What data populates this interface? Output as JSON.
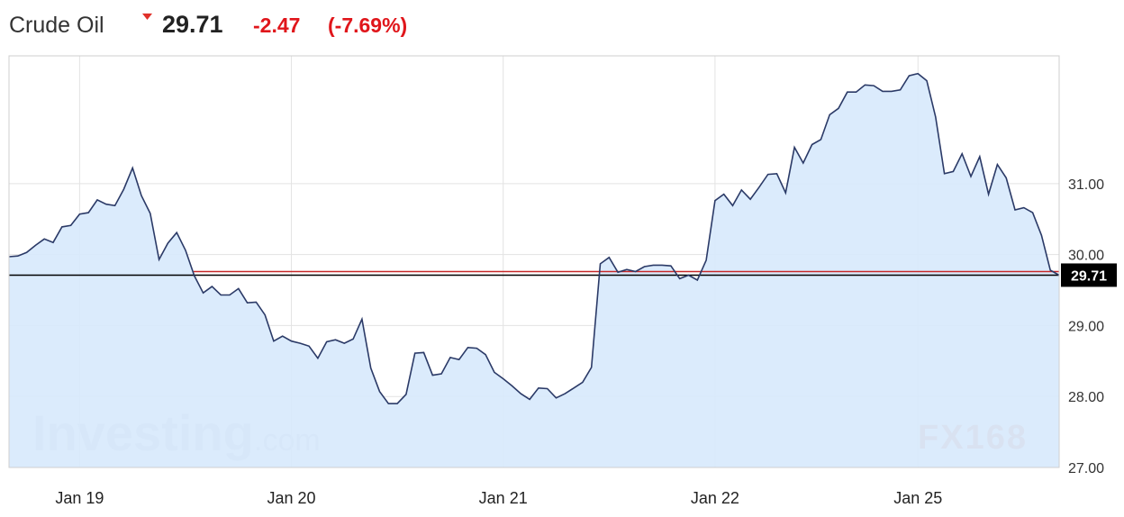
{
  "chart_data": {
    "type": "line",
    "title": "Crude Oil",
    "price": 29.71,
    "change": -2.47,
    "change_pct": {
      "value": -7.69,
      "label": "(-7.69%)"
    },
    "watermarks": [
      "Investing",
      ".com",
      "FX168"
    ],
    "categories": [
      null,
      null,
      null,
      null,
      null,
      null,
      null,
      null,
      "Jan 19",
      null,
      null,
      null,
      null,
      null,
      null,
      null,
      null,
      null,
      null,
      null,
      null,
      null,
      null,
      null,
      null,
      null,
      null,
      null,
      null,
      null,
      null,
      null,
      "Jan 20",
      null,
      null,
      null,
      null,
      null,
      null,
      null,
      null,
      null,
      null,
      null,
      null,
      null,
      null,
      null,
      null,
      null,
      null,
      null,
      null,
      null,
      null,
      null,
      "Jan 21",
      null,
      null,
      null,
      null,
      null,
      null,
      null,
      null,
      null,
      null,
      null,
      null,
      null,
      null,
      null,
      null,
      null,
      null,
      null,
      null,
      null,
      null,
      null,
      "Jan 22",
      null,
      null,
      null,
      null,
      null,
      null,
      null,
      null,
      null,
      null,
      null,
      null,
      null,
      null,
      null,
      null,
      null,
      null,
      null,
      null,
      null,
      null,
      "Jan 25",
      null,
      null,
      null,
      null,
      null,
      null,
      null,
      null,
      null,
      null,
      null,
      null,
      null,
      null,
      null,
      null
    ],
    "series": [
      {
        "name": "Crude Oil",
        "color": "#2b3a67",
        "fill": "#d7e9fc",
        "values": [
          29.97,
          29.98,
          30.03,
          30.13,
          30.22,
          30.17,
          30.39,
          30.41,
          30.57,
          30.59,
          30.77,
          30.71,
          30.69,
          30.92,
          31.22,
          30.83,
          30.58,
          29.93,
          30.16,
          30.31,
          30.06,
          29.7,
          29.46,
          29.55,
          29.43,
          29.43,
          29.52,
          29.32,
          29.33,
          29.15,
          28.78,
          28.85,
          28.78,
          28.75,
          28.71,
          28.54,
          28.77,
          28.8,
          28.75,
          28.81,
          29.09,
          28.4,
          28.07,
          27.9,
          27.9,
          28.03,
          28.61,
          28.62,
          28.3,
          28.32,
          28.55,
          28.52,
          28.69,
          28.68,
          28.59,
          28.34,
          28.25,
          28.15,
          28.04,
          27.96,
          28.12,
          28.11,
          27.98,
          28.04,
          28.12,
          28.2,
          28.41,
          29.87,
          29.96,
          29.75,
          29.79,
          29.76,
          29.83,
          29.85,
          29.85,
          29.84,
          29.66,
          29.71,
          29.64,
          29.92,
          30.76,
          30.85,
          30.69,
          30.91,
          30.78,
          30.95,
          31.13,
          31.14,
          30.87,
          31.51,
          31.29,
          31.55,
          31.62,
          31.97,
          32.06,
          32.29,
          32.29,
          32.39,
          32.38,
          32.3,
          32.3,
          32.32,
          32.52,
          32.55,
          32.45,
          31.94,
          31.14,
          31.17,
          31.42,
          31.1,
          31.38,
          30.85,
          31.27,
          31.08,
          30.63,
          30.66,
          30.59,
          30.27,
          29.78,
          29.71
        ]
      }
    ],
    "reference_lines": [
      {
        "value": 29.76,
        "color": "#c62828"
      }
    ],
    "ylim": [
      27,
      32.8
    ],
    "yticks": [
      {
        "value": 27,
        "label": "27.00"
      },
      {
        "value": 28,
        "label": "28.00"
      },
      {
        "value": 29,
        "label": "29.00"
      },
      {
        "value": 30,
        "label": "30.00"
      },
      {
        "value": 31,
        "label": "31.00"
      }
    ],
    "grid": true
  }
}
